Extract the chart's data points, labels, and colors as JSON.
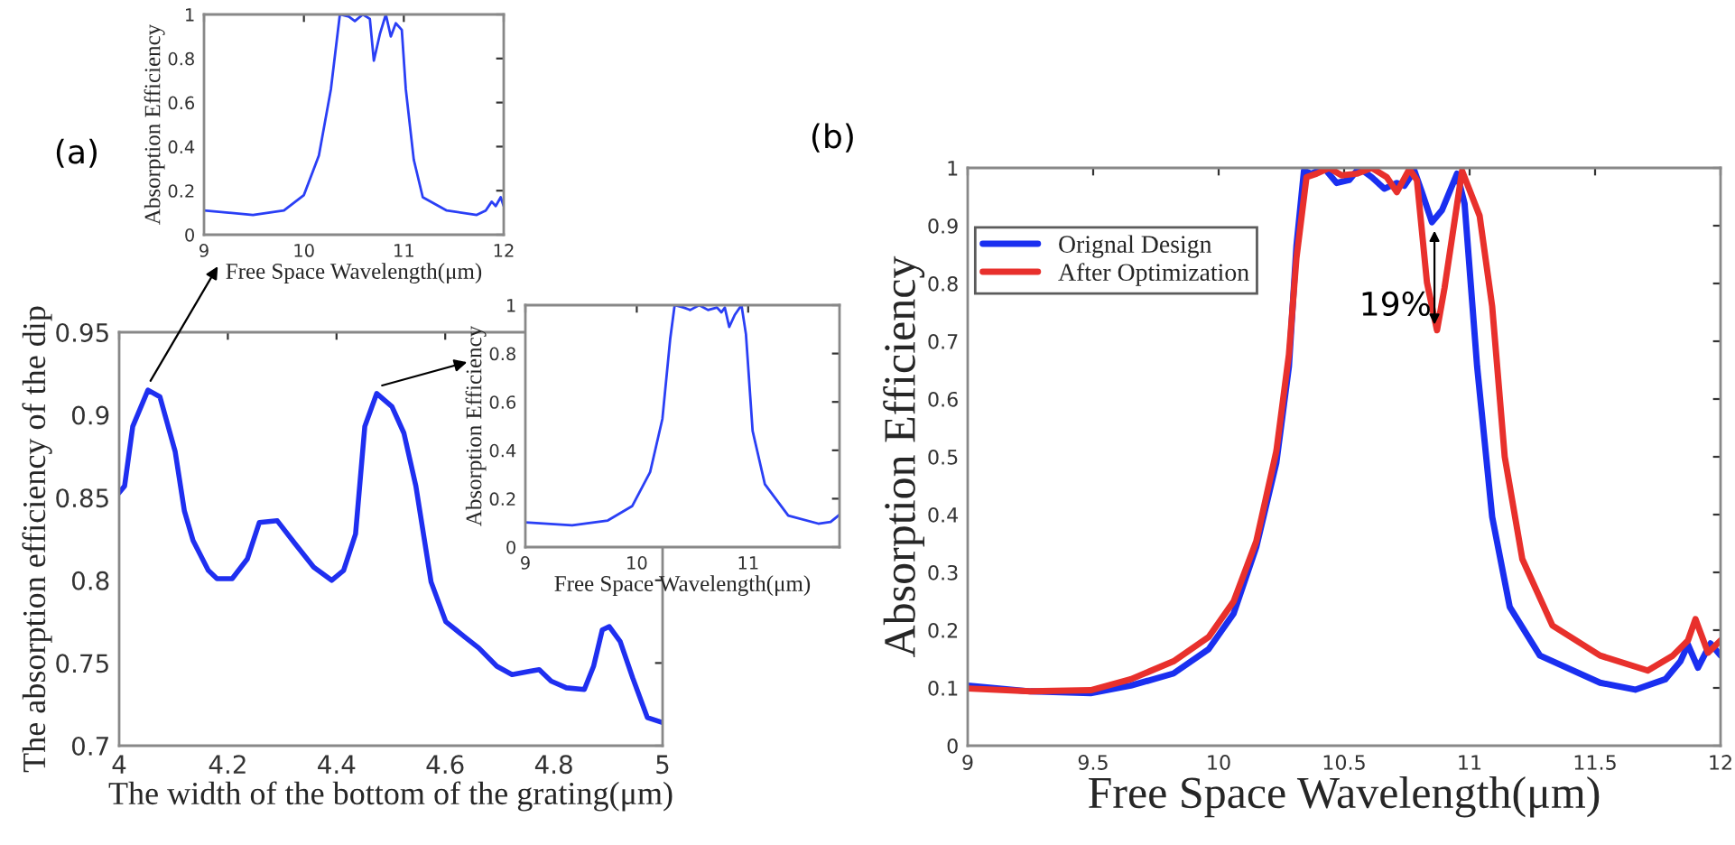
{
  "chart_data": [
    {
      "type": "line",
      "xlabel": "The width of the bottom of the grating(μm)",
      "ylabel": "The absorption efficiency of the dip",
      "annotations": [
        "(a)"
      ],
      "xlim": [
        4,
        5
      ],
      "ylim": [
        0.7,
        0.95
      ],
      "xticks": [
        4,
        4.2,
        4.4,
        4.6,
        4.8,
        5
      ],
      "yticks": [
        0.7,
        0.75,
        0.8,
        0.85,
        0.9,
        0.95
      ],
      "grid": false,
      "legend": false,
      "series": [
        {
          "color": "#1f2ff0",
          "x": [
            4.0,
            4.01,
            4.025,
            4.053,
            4.075,
            4.103,
            4.12,
            4.136,
            4.164,
            4.18,
            4.208,
            4.236,
            4.258,
            4.291,
            4.324,
            4.358,
            4.391,
            4.413,
            4.435,
            4.452,
            4.474,
            4.502,
            4.524,
            4.546,
            4.574,
            4.601,
            4.635,
            4.662,
            4.695,
            4.723,
            4.756,
            4.773,
            4.795,
            4.823,
            4.856,
            4.873,
            4.889,
            4.902,
            4.922,
            4.945,
            4.972,
            5.0
          ],
          "values": [
            0.853,
            0.857,
            0.893,
            0.915,
            0.911,
            0.878,
            0.842,
            0.824,
            0.806,
            0.801,
            0.801,
            0.813,
            0.835,
            0.836,
            0.822,
            0.808,
            0.8,
            0.806,
            0.828,
            0.893,
            0.913,
            0.905,
            0.889,
            0.857,
            0.799,
            0.775,
            0.766,
            0.759,
            0.748,
            0.743,
            0.745,
            0.746,
            0.739,
            0.735,
            0.734,
            0.748,
            0.77,
            0.772,
            0.763,
            0.741,
            0.717,
            0.714
          ]
        }
      ]
    },
    {
      "type": "line",
      "xlabel": "Free Space Wavelength(μm)",
      "ylabel": "Absorption Efficiency",
      "xlim": [
        9,
        12
      ],
      "ylim": [
        0,
        1
      ],
      "xticks": [
        9,
        10,
        11,
        12
      ],
      "yticks": [
        0,
        0.2,
        0.4,
        0.6,
        0.8,
        1
      ],
      "grid": false,
      "legend": false,
      "series": [
        {
          "color": "#2a3ff5",
          "x": [
            9,
            9.49,
            9.8,
            10,
            10.15,
            10.27,
            10.36,
            10.45,
            10.51,
            10.59,
            10.66,
            10.7,
            10.76,
            10.82,
            10.87,
            10.92,
            10.98,
            11.02,
            11.1,
            11.19,
            11.43,
            11.73,
            11.82,
            11.88,
            11.92,
            11.97,
            12
          ],
          "values": [
            0.11,
            0.09,
            0.11,
            0.18,
            0.36,
            0.66,
            1.0,
            0.99,
            0.97,
            1.0,
            0.98,
            0.79,
            0.91,
            1.0,
            0.9,
            0.96,
            0.93,
            0.66,
            0.34,
            0.17,
            0.11,
            0.09,
            0.11,
            0.15,
            0.13,
            0.17,
            0.13
          ]
        }
      ]
    },
    {
      "type": "line",
      "xlabel": "Free Space Wavelength(μm)",
      "ylabel": "Absorption Efficiency",
      "xlim": [
        9,
        11.82
      ],
      "ylim": [
        0,
        1
      ],
      "xticks": [
        9,
        10,
        11
      ],
      "yticks": [
        0,
        0.2,
        0.4,
        0.6,
        0.8,
        1
      ],
      "grid": false,
      "legend": false,
      "series": [
        {
          "color": "#2a3ff5",
          "x": [
            9,
            9.42,
            9.74,
            9.96,
            10.12,
            10.23,
            10.3,
            10.34,
            10.42,
            10.48,
            10.56,
            10.64,
            10.72,
            10.76,
            10.79,
            10.83,
            10.88,
            10.94,
            10.98,
            11.04,
            11.15,
            11.36,
            11.63,
            11.74,
            11.82
          ],
          "values": [
            0.102,
            0.09,
            0.11,
            0.17,
            0.31,
            0.53,
            0.86,
            1.0,
            0.99,
            0.98,
            1.0,
            0.98,
            0.99,
            0.97,
            0.99,
            0.91,
            0.96,
            1.0,
            0.88,
            0.48,
            0.26,
            0.13,
            0.097,
            0.104,
            0.134
          ]
        }
      ]
    },
    {
      "type": "line",
      "xlabel": "Free Space Wavelength(μm)",
      "ylabel": "Absorption Efficiency",
      "annotations": [
        "(b)",
        "19%"
      ],
      "xlim": [
        9,
        12
      ],
      "ylim": [
        0,
        1
      ],
      "xticks": [
        9,
        9.5,
        10,
        10.5,
        11,
        11.5,
        12
      ],
      "yticks": [
        0,
        0.1,
        0.2,
        0.3,
        0.4,
        0.5,
        0.6,
        0.7,
        0.8,
        0.9,
        1
      ],
      "grid": false,
      "legend": "top left",
      "series": [
        {
          "name": "Orignal Design",
          "color": "#1a2ff0",
          "x": [
            9,
            9.25,
            9.49,
            9.65,
            9.82,
            9.96,
            10.06,
            10.15,
            10.23,
            10.28,
            10.31,
            10.34,
            10.37,
            10.42,
            10.47,
            10.52,
            10.56,
            10.61,
            10.66,
            10.71,
            10.74,
            10.78,
            10.81,
            10.85,
            10.89,
            10.95,
            10.98,
            11.03,
            11.09,
            11.16,
            11.28,
            11.52,
            11.66,
            11.78,
            11.84,
            11.87,
            11.91,
            11.96,
            12
          ],
          "values": [
            0.104,
            0.094,
            0.091,
            0.104,
            0.125,
            0.167,
            0.229,
            0.344,
            0.49,
            0.656,
            0.865,
            0.995,
            0.99,
            1.0,
            0.974,
            0.979,
            1.0,
            0.984,
            0.964,
            0.974,
            0.969,
            0.995,
            0.958,
            0.906,
            0.927,
            0.99,
            0.938,
            0.656,
            0.396,
            0.24,
            0.156,
            0.109,
            0.097,
            0.115,
            0.146,
            0.175,
            0.135,
            0.177,
            0.156
          ]
        },
        {
          "name": "After Optimization",
          "color": "#e8302c",
          "x": [
            9,
            9.25,
            9.49,
            9.65,
            9.82,
            9.96,
            10.06,
            10.15,
            10.23,
            10.28,
            10.31,
            10.35,
            10.39,
            10.44,
            10.49,
            10.55,
            10.61,
            10.67,
            10.71,
            10.76,
            10.79,
            10.83,
            10.87,
            10.9,
            10.97,
            11.04,
            11.09,
            11.14,
            11.21,
            11.33,
            11.52,
            11.71,
            11.81,
            11.87,
            11.9,
            11.95,
            12
          ],
          "values": [
            0.099,
            0.094,
            0.096,
            0.115,
            0.146,
            0.188,
            0.25,
            0.354,
            0.51,
            0.677,
            0.844,
            0.984,
            0.99,
            1.0,
            0.987,
            0.99,
            1.0,
            0.984,
            0.958,
            0.998,
            0.979,
            0.802,
            0.719,
            0.792,
            0.995,
            0.917,
            0.76,
            0.5,
            0.323,
            0.208,
            0.156,
            0.13,
            0.156,
            0.182,
            0.219,
            0.161,
            0.182
          ]
        }
      ]
    }
  ]
}
